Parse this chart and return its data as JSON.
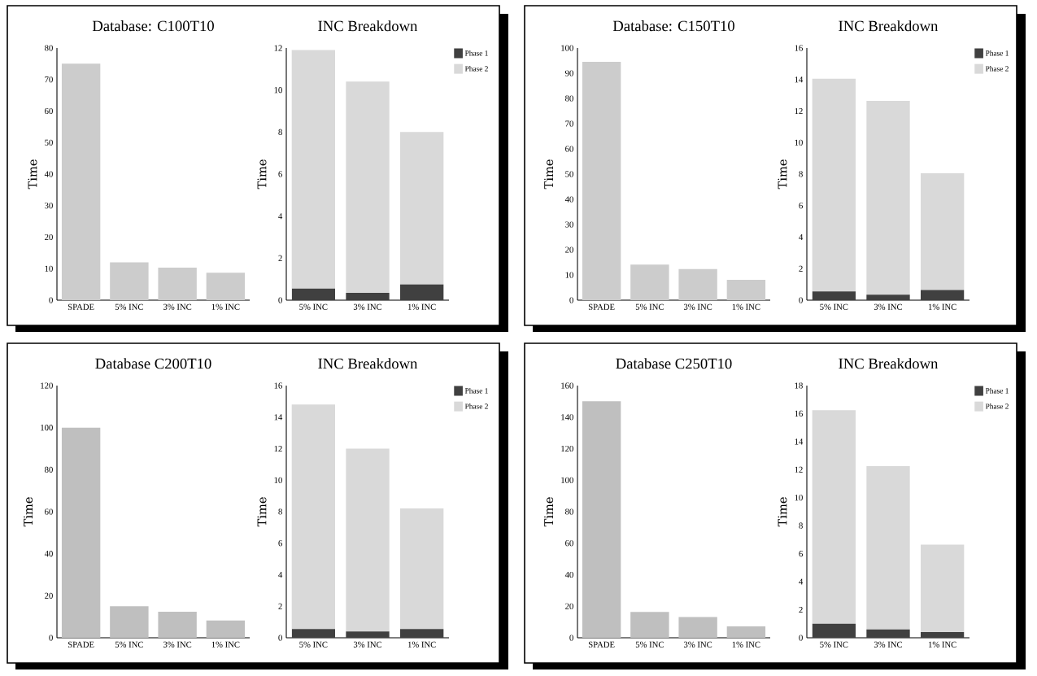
{
  "chart_data": [
    {
      "type": "bar",
      "title": "Database: C100T10",
      "ylabel": "Time",
      "categories": [
        "SPADE",
        "5% INC",
        "3% INC",
        "1% INC"
      ],
      "values": [
        75,
        12.0,
        10.3,
        8.7
      ],
      "color": "#cccccc",
      "ylim": [
        0,
        80
      ],
      "yticks": [
        0,
        10,
        20,
        30,
        40,
        50,
        60,
        70,
        80
      ]
    },
    {
      "type": "bar",
      "stacked": true,
      "title": "INC Breakdown",
      "ylabel": "Time",
      "categories": [
        "5% INC",
        "3% INC",
        "1% INC"
      ],
      "series": [
        {
          "name": "Phase 1",
          "color": "#404040",
          "values": [
            0.55,
            0.35,
            0.75
          ]
        },
        {
          "name": "Phase 2",
          "color": "#d9d9d9",
          "values": [
            11.35,
            10.05,
            7.25
          ]
        }
      ],
      "ylim": [
        0,
        12
      ],
      "yticks": [
        0,
        2,
        4,
        6,
        8,
        10,
        12
      ],
      "legend": "top right"
    },
    {
      "type": "bar",
      "title": "Database: C150T10",
      "ylabel": "Time",
      "categories": [
        "SPADE",
        "5% INC",
        "3% INC",
        "1% INC"
      ],
      "values": [
        94.5,
        14.1,
        12.3,
        8.1
      ],
      "color": "#cccccc",
      "ylim": [
        0,
        100
      ],
      "yticks": [
        0,
        10,
        20,
        30,
        40,
        50,
        60,
        70,
        80,
        90,
        100
      ]
    },
    {
      "type": "bar",
      "stacked": true,
      "title": "INC Breakdown",
      "ylabel": "Time",
      "categories": [
        "5% INC",
        "3% INC",
        "1% INC"
      ],
      "series": [
        {
          "name": "Phase 1",
          "color": "#404040",
          "values": [
            0.55,
            0.35,
            0.65
          ]
        },
        {
          "name": "Phase 2",
          "color": "#d9d9d9",
          "values": [
            13.5,
            12.3,
            7.4
          ]
        }
      ],
      "ylim": [
        0,
        16
      ],
      "yticks": [
        0,
        2,
        4,
        6,
        8,
        10,
        12,
        14,
        16
      ],
      "legend": "top right"
    },
    {
      "type": "bar",
      "title": "Database C200T10",
      "ylabel": "Time",
      "categories": [
        "SPADE",
        "5% INC",
        "3% INC",
        "1% INC"
      ],
      "values": [
        100,
        15.0,
        12.4,
        8.2
      ],
      "color": "#bfbfbf",
      "ylim": [
        0,
        120
      ],
      "yticks": [
        0,
        20,
        40,
        60,
        80,
        100,
        120
      ]
    },
    {
      "type": "bar",
      "stacked": true,
      "title": "INC Breakdown",
      "ylabel": "Time",
      "categories": [
        "5% INC",
        "3% INC",
        "1% INC"
      ],
      "series": [
        {
          "name": "Phase 1",
          "color": "#404040",
          "values": [
            0.55,
            0.4,
            0.55
          ]
        },
        {
          "name": "Phase 2",
          "color": "#d9d9d9",
          "values": [
            14.25,
            11.6,
            7.65
          ]
        }
      ],
      "ylim": [
        0,
        16
      ],
      "yticks": [
        0,
        2,
        4,
        6,
        8,
        10,
        12,
        14,
        16
      ],
      "legend": "top right"
    },
    {
      "type": "bar",
      "title": "Database C250T10",
      "ylabel": "Time",
      "categories": [
        "SPADE",
        "5% INC",
        "3% INC",
        "1% INC"
      ],
      "values": [
        150,
        16.4,
        13.1,
        7.2
      ],
      "color": "#bfbfbf",
      "ylim": [
        0,
        160
      ],
      "yticks": [
        0,
        20,
        40,
        60,
        80,
        100,
        120,
        140,
        160
      ]
    },
    {
      "type": "bar",
      "stacked": true,
      "title": "INC Breakdown",
      "ylabel": "Time",
      "categories": [
        "5% INC",
        "3% INC",
        "1% INC"
      ],
      "series": [
        {
          "name": "Phase 1",
          "color": "#404040",
          "values": [
            1.0,
            0.6,
            0.4
          ]
        },
        {
          "name": "Phase 2",
          "color": "#d9d9d9",
          "values": [
            15.25,
            11.65,
            6.25
          ]
        }
      ],
      "ylim": [
        0,
        18
      ],
      "yticks": [
        0,
        2,
        4,
        6,
        8,
        10,
        12,
        14,
        16,
        18
      ],
      "legend": "top right"
    }
  ]
}
